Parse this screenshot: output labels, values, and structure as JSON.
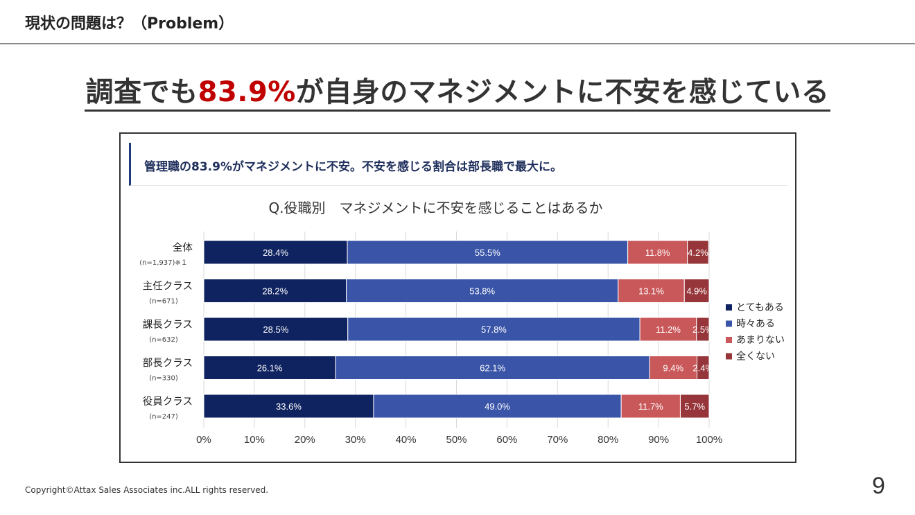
{
  "header": {
    "section_title": "現状の問題は？（Problem）"
  },
  "headline": {
    "prefix": "調査でも",
    "accent": "83.9%",
    "suffix": "が自身のマネジメントに不安を感じている"
  },
  "figure": {
    "callout": "管理職の83.9%がマネジメントに不安。不安を感じる割合は部長職で最大に。"
  },
  "chart_data": {
    "type": "bar",
    "orientation": "horizontal",
    "stacked": true,
    "title": "Q.役職別　マネジメントに不安を感じることはあるか",
    "categories": [
      "全体",
      "主任クラス",
      "課長クラス",
      "部長クラス",
      "役員クラス"
    ],
    "category_notes": [
      "(n=1,937)※１",
      "(n=671)",
      "(n=632)",
      "(n=330)",
      "(n=247)"
    ],
    "series": [
      {
        "name": "とてもある",
        "values": [
          28.4,
          28.2,
          28.5,
          26.1,
          33.6
        ],
        "color": "#0f2360",
        "label_color": "#ffffff"
      },
      {
        "name": "時々ある",
        "values": [
          55.5,
          53.8,
          57.8,
          62.1,
          49.0
        ],
        "color": "#3a55a8",
        "label_color": "#ffffff"
      },
      {
        "name": "あまりない",
        "values": [
          11.8,
          13.1,
          11.2,
          9.4,
          11.7
        ],
        "color": "#c9585a",
        "label_color": "#ffffff"
      },
      {
        "name": "全くない",
        "values": [
          4.2,
          4.9,
          2.5,
          2.4,
          5.7
        ],
        "color": "#97363a",
        "label_color": "#ffffff"
      }
    ],
    "xlim": [
      0,
      100
    ],
    "x_ticks": [
      "0%",
      "10%",
      "20%",
      "30%",
      "40%",
      "50%",
      "60%",
      "70%",
      "80%",
      "90%",
      "100%"
    ],
    "gridlines": true,
    "legend_position": "right"
  },
  "footer": {
    "copyright": "Copyright©Attax Sales Associates inc.ALL rights reserved.",
    "page_number": "9"
  }
}
